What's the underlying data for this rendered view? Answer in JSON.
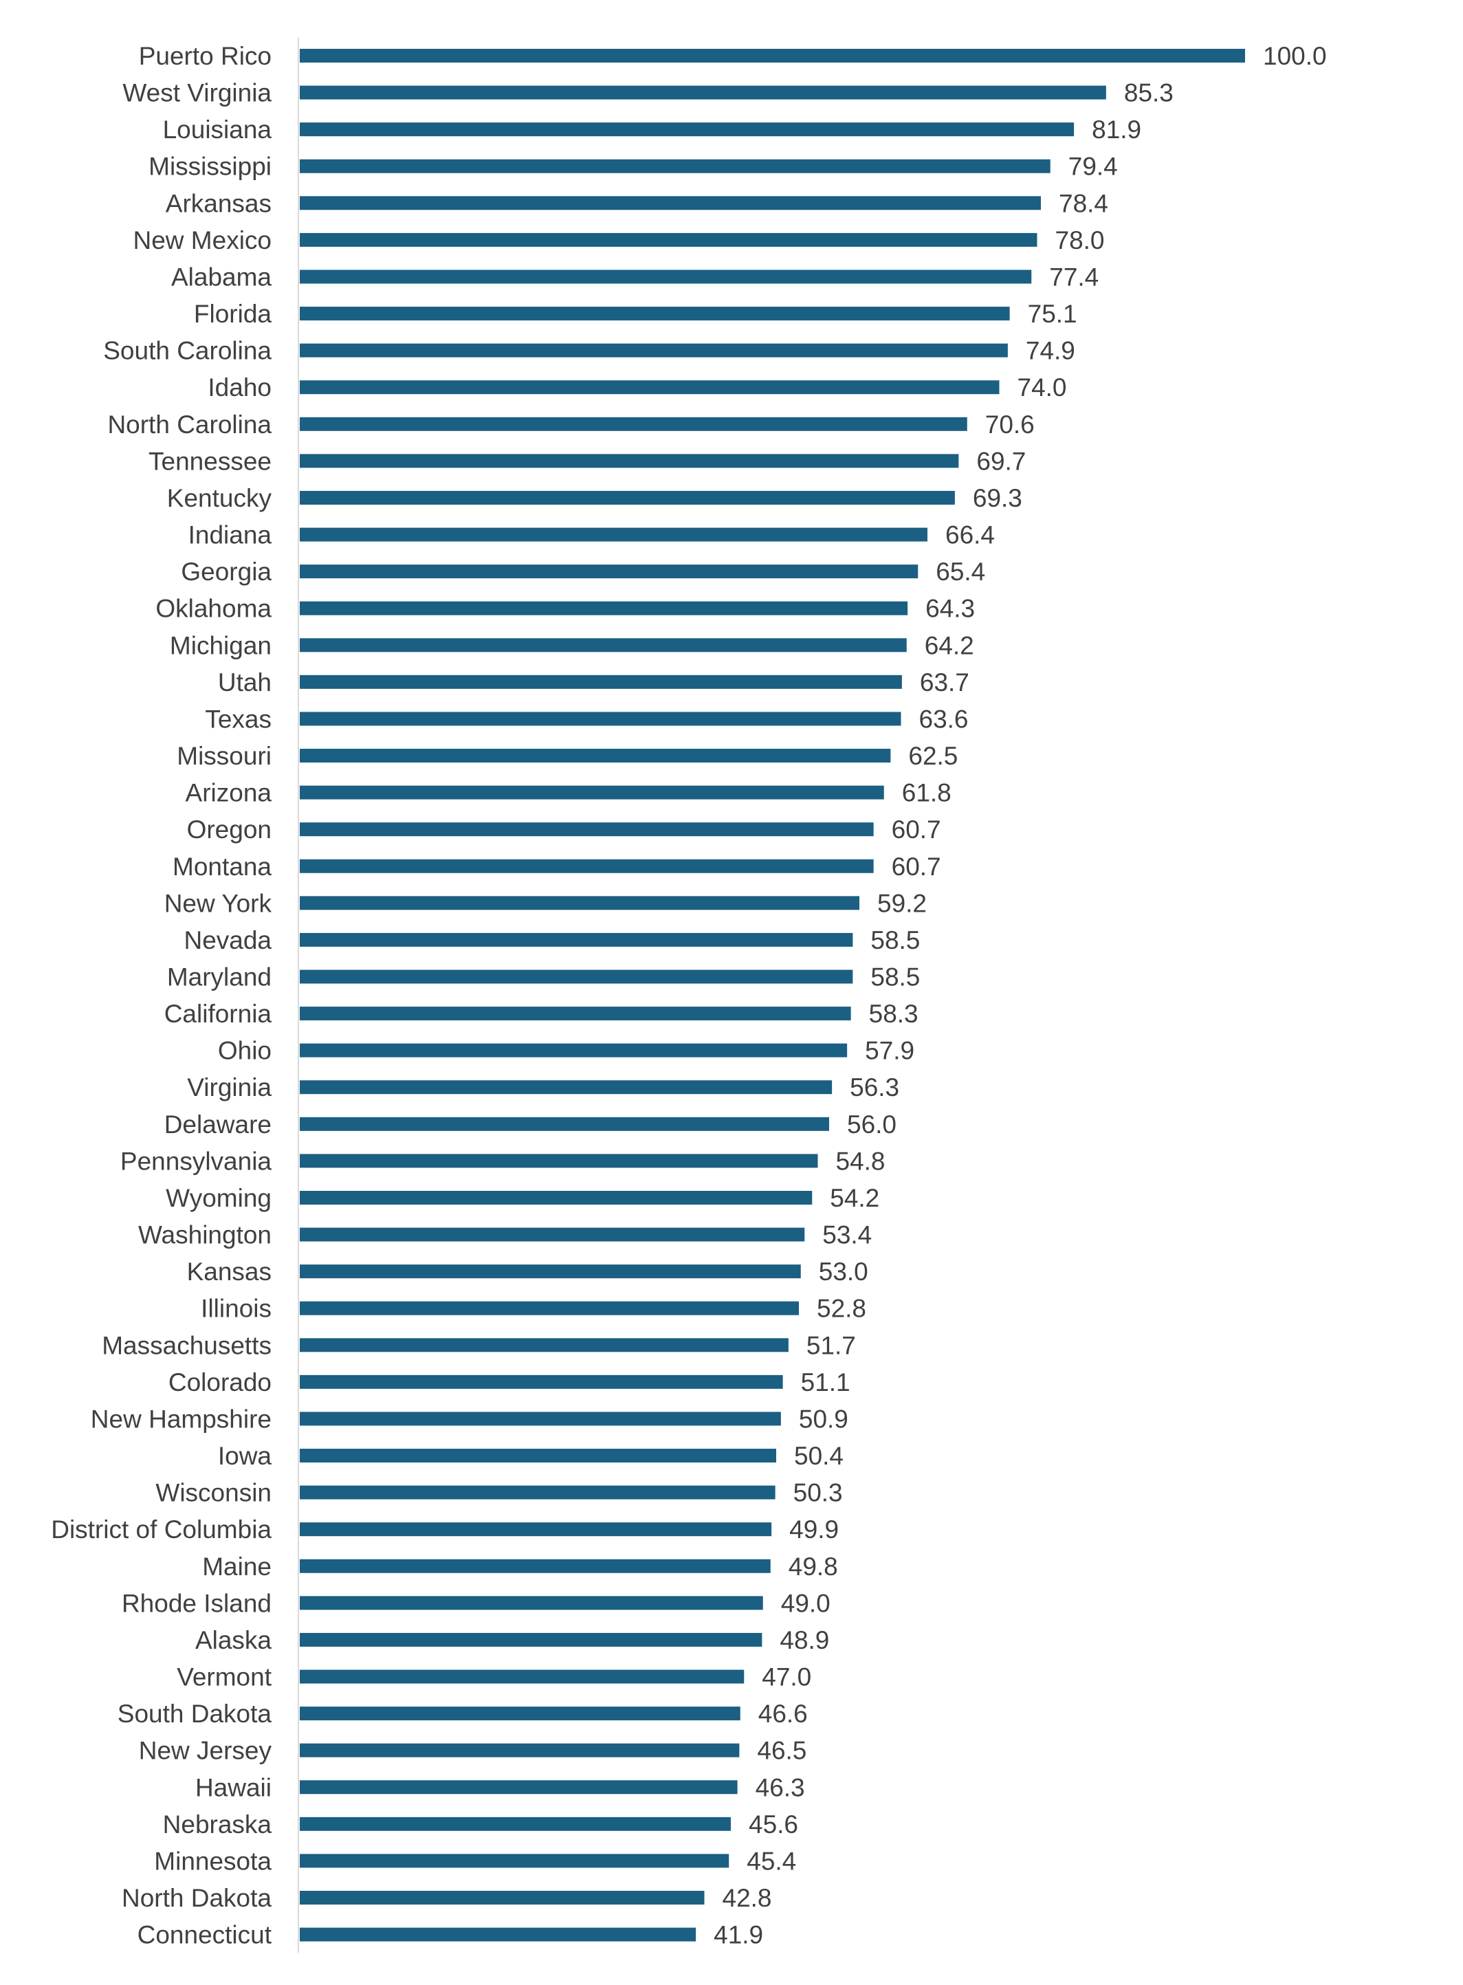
{
  "chart_data": {
    "type": "bar",
    "orientation": "horizontal",
    "title": "",
    "xlabel": "",
    "ylabel": "",
    "xlim": [
      0,
      100
    ],
    "grid": false,
    "legend": "none",
    "bar_color": "#1B5F82",
    "axis_color": "#D9D9D9",
    "text_color": "#404040",
    "categories": [
      "Puerto Rico",
      "West Virginia",
      "Louisiana",
      "Mississippi",
      "Arkansas",
      "New Mexico",
      "Alabama",
      "Florida",
      "South Carolina",
      "Idaho",
      "North Carolina",
      "Tennessee",
      "Kentucky",
      "Indiana",
      "Georgia",
      "Oklahoma",
      "Michigan",
      "Utah",
      "Texas",
      "Missouri",
      "Arizona",
      "Oregon",
      "Montana",
      "New York",
      "Nevada",
      "Maryland",
      "California",
      "Ohio",
      "Virginia",
      "Delaware",
      "Pennsylvania",
      "Wyoming",
      "Washington",
      "Kansas",
      "Illinois",
      "Massachusetts",
      "Colorado",
      "New Hampshire",
      "Iowa",
      "Wisconsin",
      "District of Columbia",
      "Maine",
      "Rhode Island",
      "Alaska",
      "Vermont",
      "South Dakota",
      "New Jersey",
      "Hawaii",
      "Nebraska",
      "Minnesota",
      "North Dakota",
      "Connecticut"
    ],
    "values": [
      100.0,
      85.3,
      81.9,
      79.4,
      78.4,
      78.0,
      77.4,
      75.1,
      74.9,
      74.0,
      70.6,
      69.7,
      69.3,
      66.4,
      65.4,
      64.3,
      64.2,
      63.7,
      63.6,
      62.5,
      61.8,
      60.7,
      60.7,
      59.2,
      58.5,
      58.5,
      58.3,
      57.9,
      56.3,
      56.0,
      54.8,
      54.2,
      53.4,
      53.0,
      52.8,
      51.7,
      51.1,
      50.9,
      50.4,
      50.3,
      49.9,
      49.8,
      49.0,
      48.9,
      47.0,
      46.6,
      46.5,
      46.3,
      45.6,
      45.4,
      42.8,
      41.9
    ],
    "value_labels": [
      "100.0",
      "85.3",
      "81.9",
      "79.4",
      "78.4",
      "78.0",
      "77.4",
      "75.1",
      "74.9",
      "74.0",
      "70.6",
      "69.7",
      "69.3",
      "66.4",
      "65.4",
      "64.3",
      "64.2",
      "63.7",
      "63.6",
      "62.5",
      "61.8",
      "60.7",
      "60.7",
      "59.2",
      "58.5",
      "58.5",
      "58.3",
      "57.9",
      "56.3",
      "56.0",
      "54.8",
      "54.2",
      "53.4",
      "53.0",
      "52.8",
      "51.7",
      "51.1",
      "50.9",
      "50.4",
      "50.3",
      "49.9",
      "49.8",
      "49.0",
      "48.9",
      "47.0",
      "46.6",
      "46.5",
      "46.3",
      "45.6",
      "45.4",
      "42.8",
      "41.9"
    ]
  }
}
